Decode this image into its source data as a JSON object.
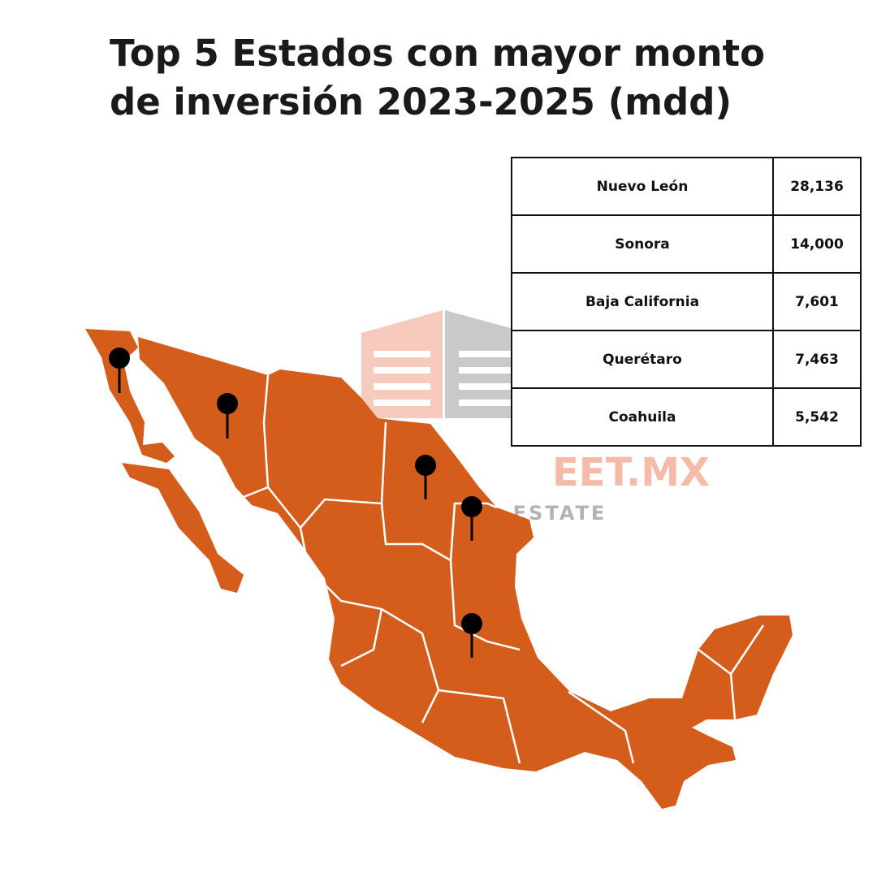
{
  "title": "Top 5 Estados con mayor monto de inversión 2023-2025 (mdd)",
  "watermark": {
    "brand": "EET.MX",
    "tagline": "L ESTATE"
  },
  "table": {
    "rows": [
      [
        "Nuevo León",
        "28,136"
      ],
      [
        "Sonora",
        "14,000"
      ],
      [
        "Baja California",
        "7,601"
      ],
      [
        "Querétaro",
        "7,463"
      ],
      [
        "Coahuila",
        "5,542"
      ]
    ]
  }
}
